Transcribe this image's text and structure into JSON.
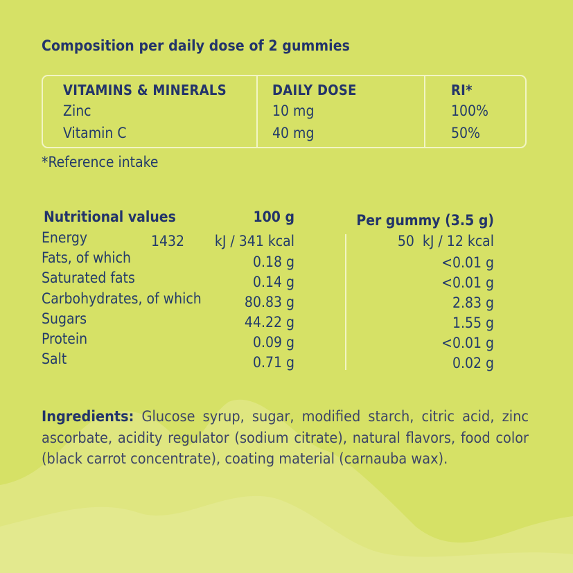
{
  "composition": {
    "title": "Composition per daily dose of 2 gummies",
    "headers": {
      "name": "VITAMINS & MINERALS",
      "dose": "DAILY DOSE",
      "ri": "RI*"
    },
    "rows": [
      {
        "name": "Zinc",
        "dose": "10 mg",
        "ri": "100%"
      },
      {
        "name": "Vitamin C",
        "dose": "40 mg",
        "ri": "50%"
      }
    ],
    "footnote": "*Reference intake"
  },
  "nutrition": {
    "headers": {
      "label": "Nutritional values",
      "per100": "100 g",
      "perGummy": "Per gummy (3.5 g)"
    },
    "rows": [
      {
        "label": "Energy",
        "per100_kj": "1432",
        "per100_rest": "kJ / 341 kcal",
        "perGummy": "50  kJ / 12 kcal"
      },
      {
        "label": "Fats, of which",
        "per100": "0.18 g",
        "perGummy": "<0.01 g"
      },
      {
        "label": "Saturated fats",
        "per100": "0.14 g",
        "perGummy": "<0.01 g"
      },
      {
        "label": "Carbohydrates, of which",
        "per100": "80.83 g",
        "perGummy": "2.83 g"
      },
      {
        "label": "Sugars",
        "per100": "44.22 g",
        "perGummy": "1.55 g"
      },
      {
        "label": "Protein",
        "per100": "0.09 g",
        "perGummy": "<0.01 g"
      },
      {
        "label": "Salt",
        "per100": "0.71 g",
        "perGummy": "0.02 g"
      }
    ]
  },
  "ingredients": {
    "label": "Ingredients:",
    "text": " Glucose syrup, sugar, modified starch, citric acid, zinc ascorbate, acidity regulator (sodium citrate), natural flavors, food color (black carrot concentrate), coating material (carnauba wax)."
  },
  "colors": {
    "background": "#d6e166",
    "background_light": "#dfe680",
    "navy": "#23346a",
    "line": "#f2f5c4"
  }
}
